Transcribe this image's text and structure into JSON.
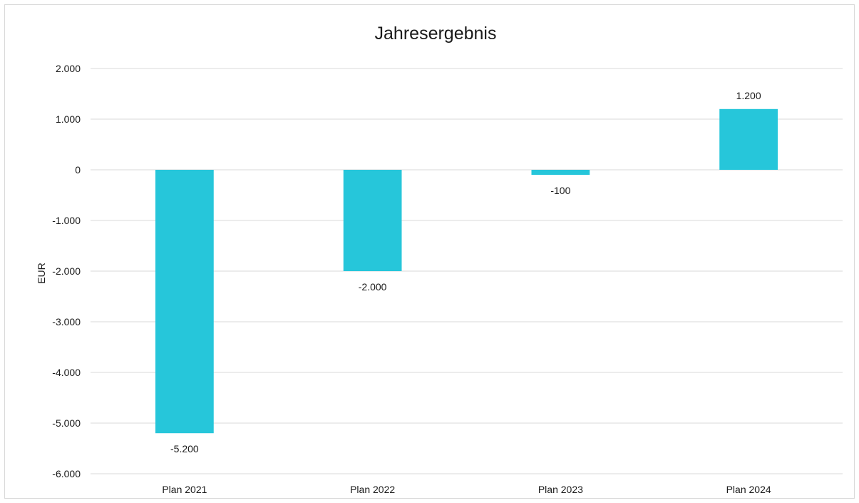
{
  "chart_data": {
    "type": "bar",
    "title": "Jahresergebnis",
    "xlabel": "",
    "ylabel": "EUR",
    "categories": [
      "Plan 2021",
      "Plan 2022",
      "Plan 2023",
      "Plan 2024"
    ],
    "values": [
      -5200,
      -2000,
      -100,
      1200
    ],
    "value_labels": [
      "-5.200",
      "-2.000",
      "-100",
      "1.200"
    ],
    "ylim": [
      -6000,
      2000
    ],
    "yticks": [
      2000,
      1000,
      0,
      -1000,
      -2000,
      -3000,
      -4000,
      -5000,
      -6000
    ],
    "ytick_labels": [
      "2.000",
      "1.000",
      "0",
      "-1.000",
      "-2.000",
      "-3.000",
      "-4.000",
      "-5.000",
      "-6.000"
    ],
    "grid": true,
    "legend": "none",
    "bar_color": "#26C6DA"
  }
}
